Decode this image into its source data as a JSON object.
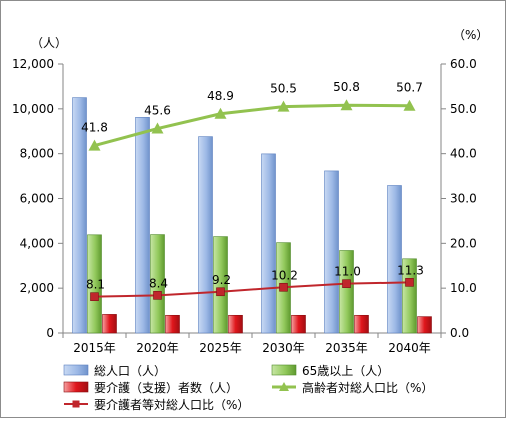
{
  "chart_data": {
    "type": "bar",
    "categories": [
      "2015年",
      "2020年",
      "2025年",
      "2030年",
      "2035年",
      "2040年"
    ],
    "y_left": {
      "unit_label": "（人）",
      "ylim": [
        0,
        12000
      ],
      "ticks": [
        "0",
        "2,000",
        "4,000",
        "6,000",
        "8,000",
        "10,000",
        "12,000"
      ]
    },
    "y_right": {
      "unit_label": "（%）",
      "ylim": [
        0,
        60
      ],
      "ticks": [
        "0.0",
        "10.0",
        "20.0",
        "30.0",
        "40.0",
        "50.0",
        "60.0"
      ]
    },
    "series": [
      {
        "name": "総人口（人）",
        "kind": "bar",
        "axis": "left",
        "color": "#9db9e6",
        "values": [
          10500,
          9620,
          8760,
          7990,
          7230,
          6580
        ]
      },
      {
        "name": "65歳以上（人）",
        "kind": "bar",
        "axis": "left",
        "color": "#92c95c",
        "values": [
          4380,
          4390,
          4300,
          4030,
          3680,
          3310
        ]
      },
      {
        "name": "要介護（支援）者数（人）",
        "kind": "bar",
        "axis": "left",
        "color": "#e0161c",
        "values": [
          830,
          790,
          790,
          790,
          790,
          730
        ]
      },
      {
        "name": "高齢者対総人口比（%）",
        "kind": "line",
        "axis": "right",
        "color": "#92c24f",
        "marker": "triangle",
        "values": [
          41.8,
          45.6,
          48.9,
          50.5,
          50.8,
          50.7
        ],
        "labels": [
          "41.8",
          "45.6",
          "48.9",
          "50.5",
          "50.8",
          "50.7"
        ]
      },
      {
        "name": "要介護者等対総人口比（%）",
        "kind": "line",
        "axis": "right",
        "color": "#c0262c",
        "marker": "square",
        "values": [
          8.1,
          8.4,
          9.2,
          10.2,
          11.0,
          11.3
        ],
        "labels": [
          "8.1",
          "8.4",
          "9.2",
          "10.2",
          "11.0",
          "11.3"
        ]
      }
    ],
    "grid": false,
    "legend_position": "bottom"
  }
}
